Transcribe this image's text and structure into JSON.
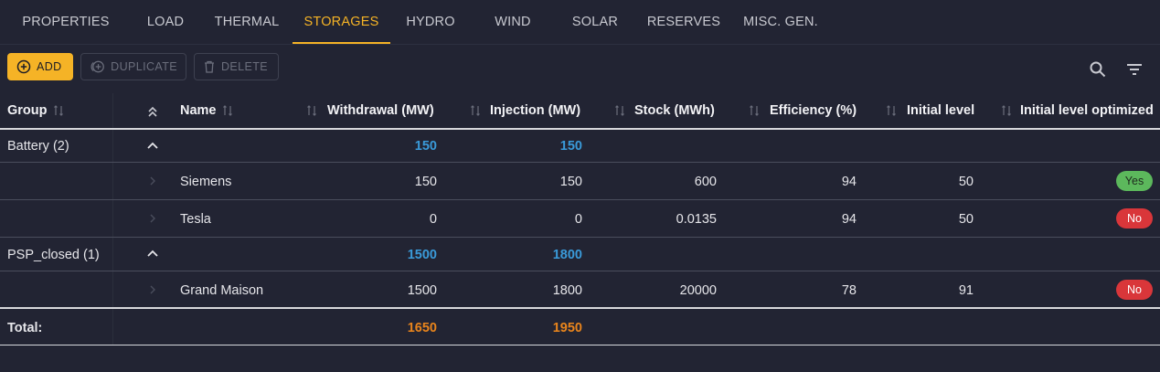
{
  "tabs": [
    {
      "label": "PROPERTIES"
    },
    {
      "label": "LOAD"
    },
    {
      "label": "THERMAL"
    },
    {
      "label": "STORAGES"
    },
    {
      "label": "HYDRO"
    },
    {
      "label": "WIND"
    },
    {
      "label": "SOLAR"
    },
    {
      "label": "RESERVES"
    },
    {
      "label": "MISC. GEN."
    }
  ],
  "active_tab": "STORAGES",
  "toolbar": {
    "add": "ADD",
    "duplicate": "DUPLICATE",
    "delete": "DELETE"
  },
  "columns": {
    "group": "Group",
    "name": "Name",
    "withdrawal": "Withdrawal (MW)",
    "injection": "Injection (MW)",
    "stock": "Stock (MWh)",
    "efficiency": "Efficiency (%)",
    "initial_level": "Initial level",
    "initial_level_optimized": "Initial level optimized"
  },
  "groups": [
    {
      "label": "Battery (2)",
      "withdrawal": "150",
      "injection": "150",
      "rows": [
        {
          "name": "Siemens",
          "withdrawal": "150",
          "injection": "150",
          "stock": "600",
          "efficiency": "94",
          "initial_level": "50",
          "optimized": "Yes"
        },
        {
          "name": "Tesla",
          "withdrawal": "0",
          "injection": "0",
          "stock": "0.0135",
          "efficiency": "94",
          "initial_level": "50",
          "optimized": "No"
        }
      ]
    },
    {
      "label": "PSP_closed (1)",
      "withdrawal": "1500",
      "injection": "1800",
      "rows": [
        {
          "name": "Grand Maison",
          "withdrawal": "1500",
          "injection": "1800",
          "stock": "20000",
          "efficiency": "78",
          "initial_level": "91",
          "optimized": "No"
        }
      ]
    }
  ],
  "total": {
    "label": "Total:",
    "withdrawal": "1650",
    "injection": "1950"
  },
  "colors": {
    "accent": "#f5b326",
    "group_sum": "#3a9ad9",
    "total": "#e8841c",
    "yes": "#5cb85c",
    "no": "#d9363a"
  }
}
